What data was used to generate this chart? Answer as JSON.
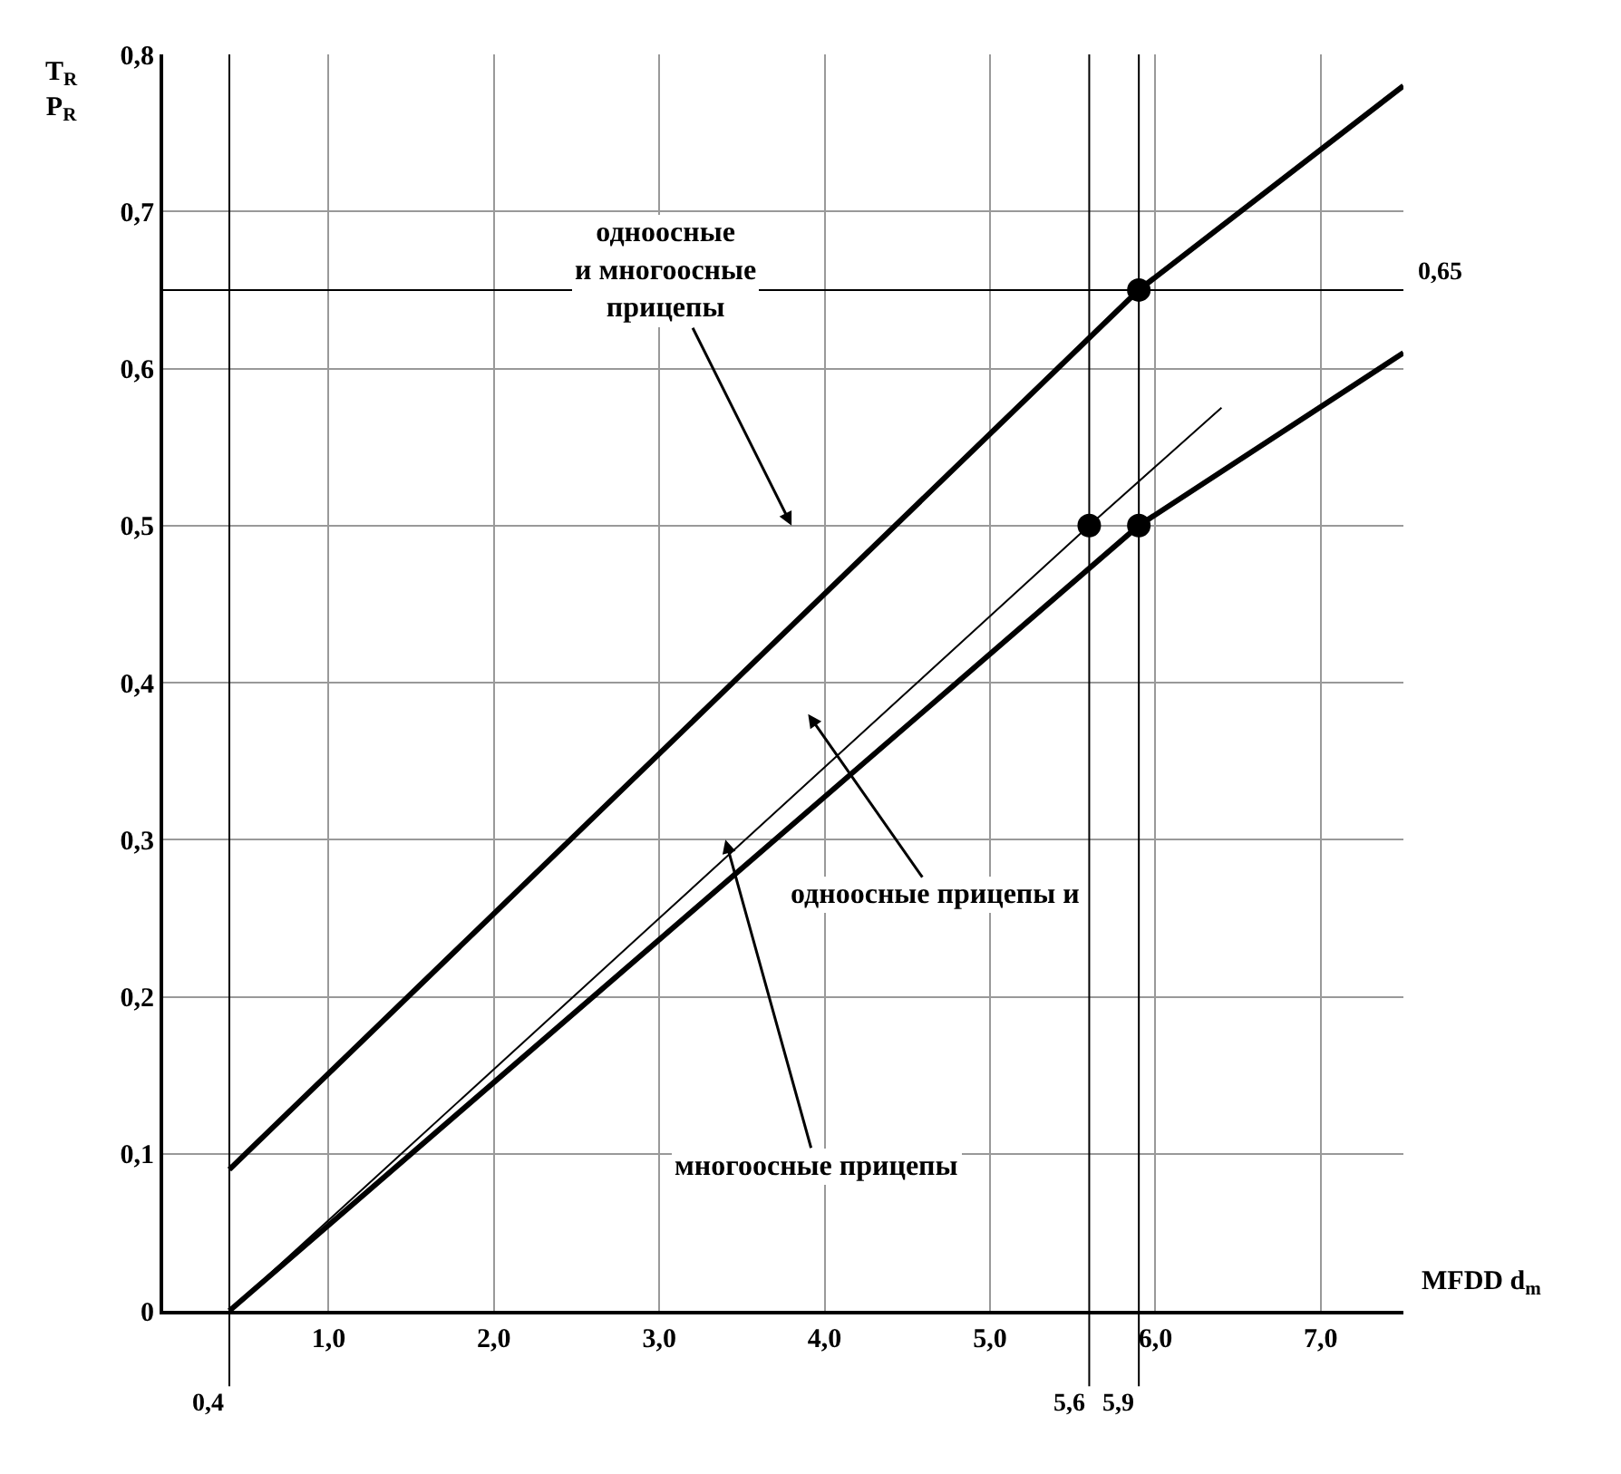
{
  "chart_data": {
    "type": "line",
    "xlabel": "MFDD d$_{m}$",
    "ylabel": "T$_{R}$ P$_{R}$",
    "series": [
      {
        "color": "#000000",
        "x": [
          0.4,
          5.9,
          7.5
        ],
        "values": [
          0.09,
          0.65,
          0.78
        ]
      },
      {
        "color": "#000000",
        "x": [
          0.4,
          5.9,
          7.5
        ],
        "values": [
          0,
          0.5,
          0.61
        ]
      },
      {
        "color": "#000000",
        "x": [
          0.4,
          5.6,
          6.4
        ],
        "values": [
          0,
          0.5,
          0.575
        ]
      },
      {
        "type": "scatter",
        "color": "#000000",
        "marker": "circle",
        "x": [
          5.6,
          5.9,
          5.9
        ],
        "values": [
          0.5,
          0.5,
          0.65
        ]
      }
    ],
    "xlim": [
      0,
      7.5
    ],
    "ylim": [
      0,
      0.8
    ],
    "xticks": [
      {
        "value": 1,
        "label": "1,0"
      },
      {
        "value": 2,
        "label": "2,0"
      },
      {
        "value": 3,
        "label": "3,0"
      },
      {
        "value": 4,
        "label": "4,0"
      },
      {
        "value": 5,
        "label": "5,0"
      },
      {
        "value": 6,
        "label": "6,0"
      },
      {
        "value": 7,
        "label": "7,0"
      }
    ],
    "yticks": [
      0,
      {
        "value": 0.1,
        "label": "0,1"
      },
      {
        "value": 0.2,
        "label": "0,2"
      },
      {
        "value": 0.3,
        "label": "0,3"
      },
      {
        "value": 0.4,
        "label": "0,4"
      },
      {
        "value": 0.5,
        "label": "0,5"
      },
      {
        "value": 0.6,
        "label": "0,6"
      },
      {
        "value": 0.7,
        "label": "0,7"
      },
      {
        "value": 0.8,
        "label": "0,8"
      }
    ],
    "ref_lines": [
      {
        "axis": "x",
        "value": 0.4,
        "label": "0,4"
      },
      {
        "axis": "x",
        "value": 5.6,
        "label": "5,6"
      },
      {
        "axis": "x",
        "value": 5.9,
        "label": "5,9"
      },
      {
        "axis": "y",
        "value": 0.65,
        "label": "0,65"
      }
    ],
    "annotations": [
      "одноосные и многоосные прицепы",
      "одноосные прицепы и",
      "многоосные прицепы"
    ],
    "grid": true,
    "marker": "none",
    "line_style": "solid"
  }
}
